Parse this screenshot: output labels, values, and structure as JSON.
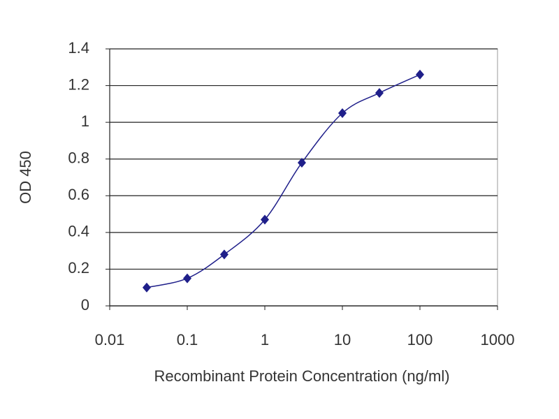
{
  "chart_data": {
    "type": "line",
    "x_label": "Recombinant Protein Concentration (ng/ml)",
    "y_label": "OD 450",
    "x": [
      0.03,
      0.1,
      0.3,
      1,
      3,
      10,
      30,
      100
    ],
    "values": [
      0.1,
      0.15,
      0.28,
      0.47,
      0.78,
      1.05,
      1.16,
      1.26
    ],
    "color": "#1f1f8a",
    "xscale": "log",
    "xlim": [
      0.01,
      1000
    ],
    "xticks": [
      0.01,
      0.1,
      1,
      10,
      100,
      1000
    ],
    "ylim": [
      0,
      1.4
    ],
    "yticks": [
      0,
      0.2,
      0.4,
      0.6,
      0.8,
      1,
      1.2,
      1.4
    ],
    "grid": true
  }
}
